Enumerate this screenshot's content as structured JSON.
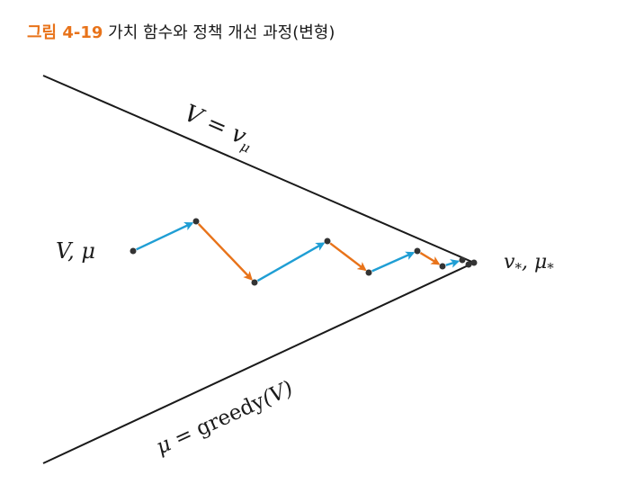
{
  "caption": {
    "figure_label": "그림 4-19",
    "title": "가치 함수와 정책 개선 과정(변형)"
  },
  "labels": {
    "upper_line": "V = v",
    "upper_line_sub": "μ",
    "lower_line_pre": "μ = ",
    "lower_line_func": "greedy",
    "lower_line_arg": "(V)",
    "start": "V,  μ",
    "optimal_v": "v",
    "optimal_v_sub": "*",
    "optimal_sep": ",  ",
    "optimal_mu": "μ",
    "optimal_mu_sub": "*"
  },
  "colors": {
    "evaluation_arrow": "#1f9ed4",
    "improvement_arrow": "#e8731a",
    "line": "#1a1a1a",
    "point": "#333333",
    "caption_accent": "#e8731a"
  },
  "arrows": [
    {
      "type": "evaluation",
      "name": "evaluation-arrow-1"
    },
    {
      "type": "improvement",
      "name": "improvement-arrow-1"
    },
    {
      "type": "evaluation",
      "name": "evaluation-arrow-2"
    },
    {
      "type": "improvement",
      "name": "improvement-arrow-2"
    },
    {
      "type": "evaluation",
      "name": "evaluation-arrow-3"
    },
    {
      "type": "improvement",
      "name": "improvement-arrow-3"
    },
    {
      "type": "evaluation",
      "name": "evaluation-arrow-4"
    }
  ]
}
